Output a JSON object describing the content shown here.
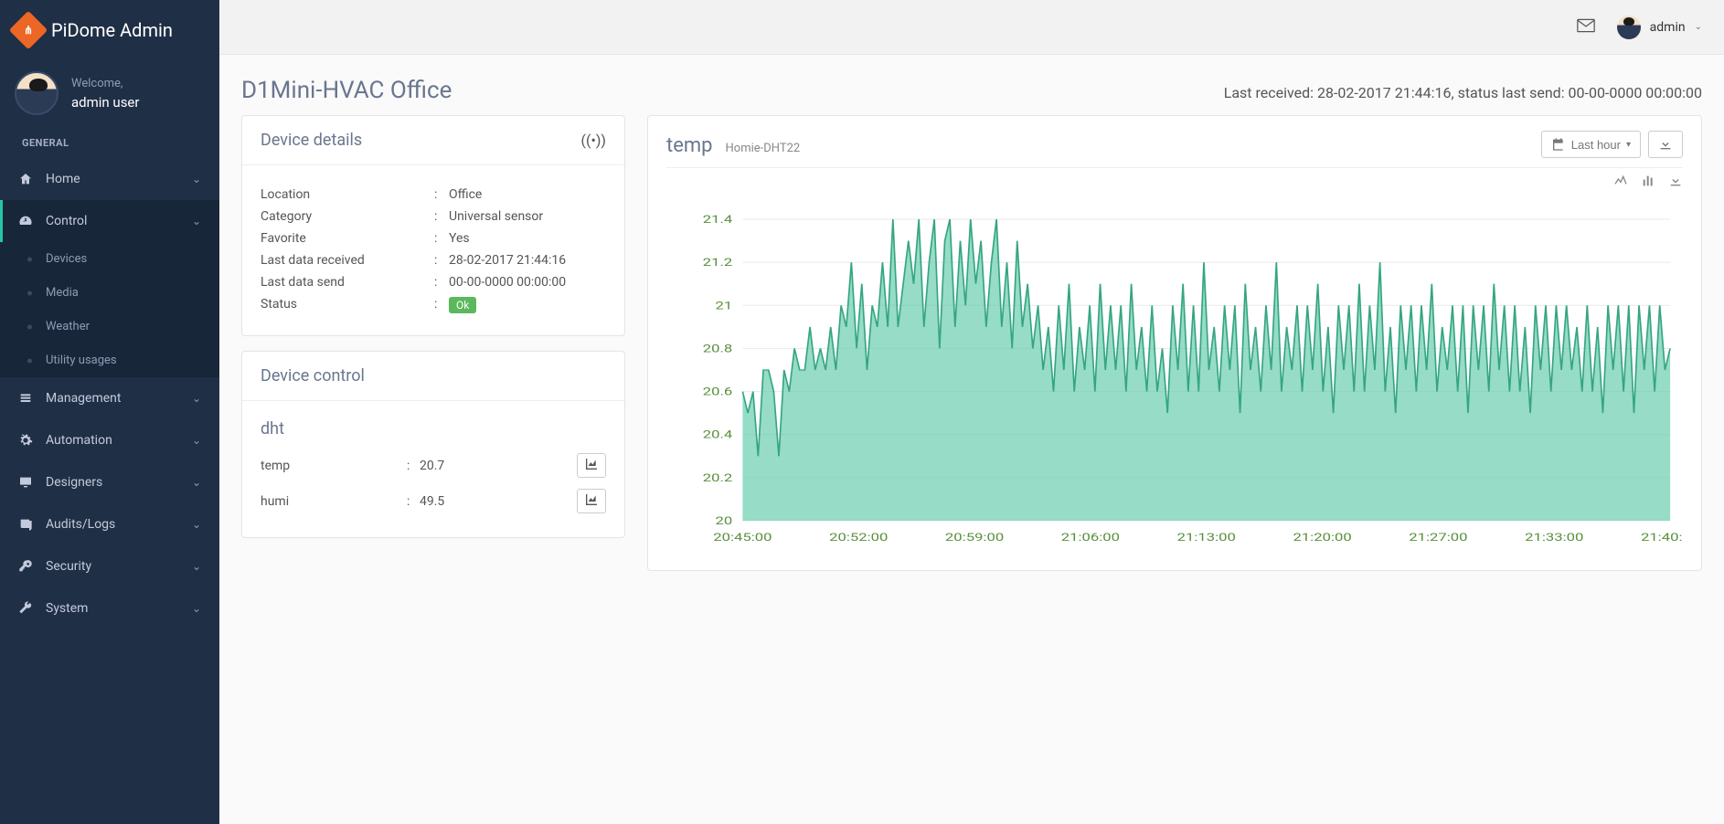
{
  "brand": {
    "title": "PiDome Admin"
  },
  "welcome": {
    "greeting": "Welcome,",
    "name": "admin user"
  },
  "section_label": "GENERAL",
  "sidebar": {
    "items": [
      {
        "label": "Home"
      },
      {
        "label": "Control"
      },
      {
        "label": "Management"
      },
      {
        "label": "Automation"
      },
      {
        "label": "Designers"
      },
      {
        "label": "Audits/Logs"
      },
      {
        "label": "Security"
      },
      {
        "label": "System"
      }
    ],
    "control_sub": [
      {
        "label": "Devices"
      },
      {
        "label": "Media"
      },
      {
        "label": "Weather"
      },
      {
        "label": "Utility usages"
      }
    ]
  },
  "topbar": {
    "user": "admin"
  },
  "page": {
    "title": "D1Mini-HVAC Office",
    "status_line": "Last received: 28-02-2017 21:44:16, status last send: 00-00-0000 00:00:00"
  },
  "device_details": {
    "panel_title": "Device details",
    "rows": {
      "location": {
        "label": "Location",
        "value": "Office"
      },
      "category": {
        "label": "Category",
        "value": "Universal sensor"
      },
      "favorite": {
        "label": "Favorite",
        "value": "Yes"
      },
      "last_recv": {
        "label": "Last data received",
        "value": "28-02-2017 21:44:16"
      },
      "last_send": {
        "label": "Last data send",
        "value": "00-00-0000 00:00:00"
      },
      "status": {
        "label": "Status",
        "value": "Ok"
      }
    }
  },
  "device_control": {
    "panel_title": "Device control",
    "group": "dht",
    "items": {
      "temp": {
        "name": "temp",
        "value": "20.7"
      },
      "humi": {
        "name": "humi",
        "value": "49.5"
      }
    }
  },
  "chart": {
    "title": "temp",
    "subtitle": "Homie-DHT22",
    "range_label": "Last hour",
    "type": "area",
    "ylim": [
      20,
      21.4
    ],
    "ytick_step": 0.2,
    "x_labels": [
      "20:45:00",
      "20:52:00",
      "20:59:00",
      "21:06:00",
      "21:13:00",
      "21:20:00",
      "21:27:00",
      "21:33:00",
      "21:40:00"
    ],
    "series_color": "#5ec9a7",
    "line_color": "#35a582",
    "grid_color": "#eaeaea",
    "axis_text_color": "#5a8f3d",
    "background_color": "#ffffff",
    "values": [
      20.6,
      20.5,
      20.6,
      20.3,
      20.7,
      20.7,
      20.6,
      20.3,
      20.7,
      20.6,
      20.8,
      20.7,
      20.7,
      20.9,
      20.7,
      20.8,
      20.7,
      20.9,
      20.7,
      21.0,
      20.9,
      21.2,
      20.8,
      21.1,
      20.7,
      21.0,
      20.9,
      21.2,
      20.9,
      21.4,
      20.9,
      21.1,
      21.3,
      21.1,
      21.4,
      20.9,
      21.2,
      21.4,
      20.8,
      21.3,
      21.4,
      20.9,
      21.3,
      21.0,
      21.4,
      21.1,
      21.3,
      20.9,
      21.2,
      21.4,
      20.9,
      21.2,
      20.8,
      21.3,
      20.9,
      21.1,
      20.8,
      21.0,
      20.7,
      20.9,
      20.6,
      21.0,
      20.7,
      21.1,
      20.6,
      20.9,
      20.7,
      21.0,
      20.6,
      21.1,
      20.7,
      21.0,
      20.7,
      21.0,
      20.6,
      21.1,
      20.7,
      20.9,
      20.6,
      21.0,
      20.6,
      20.8,
      20.5,
      21.0,
      20.7,
      21.1,
      20.6,
      21.0,
      20.6,
      21.2,
      20.7,
      20.9,
      20.6,
      21.0,
      20.7,
      21.0,
      20.5,
      21.1,
      20.7,
      20.9,
      20.6,
      21.0,
      20.7,
      21.2,
      20.6,
      20.9,
      20.7,
      21.0,
      20.6,
      21.0,
      20.7,
      21.1,
      20.6,
      20.9,
      20.5,
      21.0,
      20.7,
      21.0,
      20.6,
      21.1,
      20.6,
      21.0,
      20.7,
      21.2,
      20.6,
      20.9,
      20.5,
      21.0,
      20.7,
      21.0,
      20.6,
      21.0,
      20.7,
      21.1,
      20.6,
      20.9,
      20.7,
      21.0,
      20.6,
      21.0,
      20.5,
      21.0,
      20.7,
      21.0,
      20.6,
      21.1,
      20.7,
      21.0,
      20.6,
      21.0,
      20.6,
      20.9,
      20.5,
      21.0,
      20.7,
      21.0,
      20.6,
      21.0,
      20.7,
      21.0,
      20.7,
      20.9,
      20.6,
      21.0,
      20.6,
      20.9,
      20.5,
      21.0,
      20.7,
      21.0,
      20.6,
      21.0,
      20.5,
      21.0,
      20.7,
      21.0,
      20.6,
      21.0,
      20.7,
      20.8
    ]
  }
}
